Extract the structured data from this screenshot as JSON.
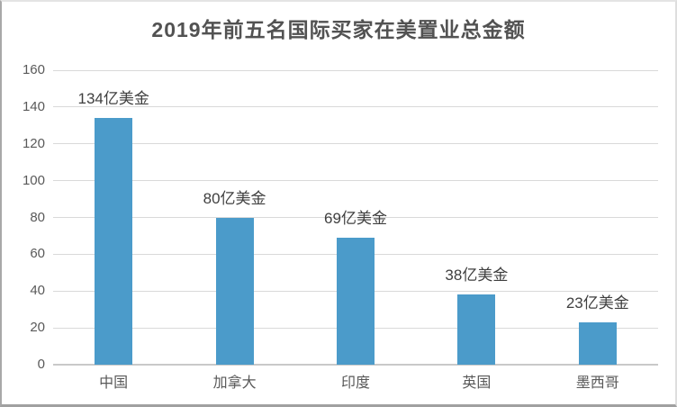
{
  "title": "2019年前五名国际买家在美置业总金额",
  "colors": {
    "bar": "#4b9bca",
    "grid": "#d9d9d9",
    "baseline": "#c9c9c9",
    "title_text": "#525252",
    "axis_text": "#595959",
    "value_label_text": "#3f3f3f",
    "background": "#ffffff"
  },
  "chart_data": {
    "type": "bar",
    "title": "2019年前五名国际买家在美置业总金额",
    "categories": [
      "中国",
      "加拿大",
      "印度",
      "英国",
      "墨西哥"
    ],
    "values": [
      134,
      80,
      69,
      38,
      23
    ],
    "value_labels": [
      "134亿美金",
      "80亿美金",
      "69亿美金",
      "38亿美金",
      "23亿美金"
    ],
    "unit_suffix": "亿美金",
    "xlabel": "",
    "ylabel": "",
    "ylim": [
      0,
      160
    ],
    "ytick_step": 20,
    "yticks": [
      0,
      20,
      40,
      60,
      80,
      100,
      120,
      140,
      160
    ],
    "grid": "horizontal",
    "legend": "none",
    "bar_color": "#4b9bca"
  }
}
